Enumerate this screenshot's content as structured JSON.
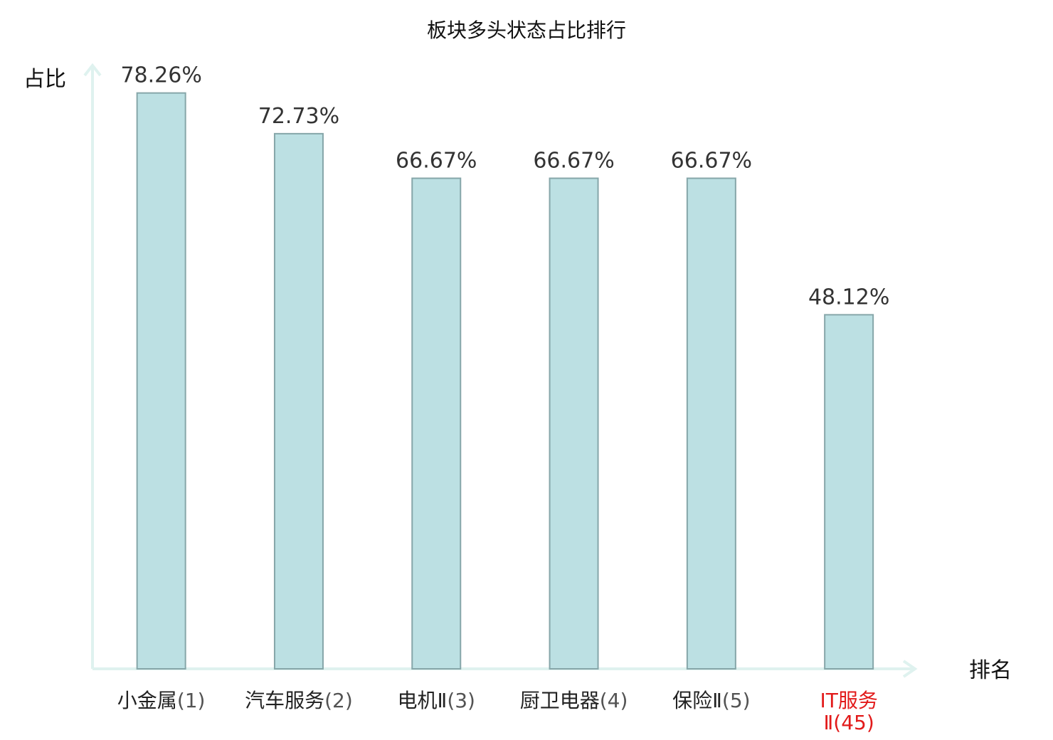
{
  "chart_data": {
    "type": "bar",
    "title": "板块多头状态占比排行",
    "ylabel": "占比",
    "xlabel": "排名",
    "ylim": [
      0,
      82
    ],
    "grid": false,
    "categories": [
      {
        "name": "小金属",
        "rank": "(1)",
        "highlight": false
      },
      {
        "name": "汽车服务",
        "rank": "(2)",
        "highlight": false
      },
      {
        "name": "电机Ⅱ",
        "rank": "(3)",
        "highlight": false
      },
      {
        "name": "厨卫电器",
        "rank": "(4)",
        "highlight": false
      },
      {
        "name": "保险Ⅱ",
        "rank": "(5)",
        "highlight": false
      },
      {
        "name": "IT服务",
        "rank": "Ⅱ(45)",
        "highlight": true
      }
    ],
    "values": [
      78.26,
      72.73,
      66.67,
      66.67,
      66.67,
      48.12
    ],
    "value_labels": [
      "78.26%",
      "72.73%",
      "66.67%",
      "66.67%",
      "66.67%",
      "48.12%"
    ]
  },
  "colors": {
    "bar_fill": "#bce0e3",
    "bar_stroke": "#86a6a9",
    "axis": "#dff2ef",
    "label_normal": "#222222",
    "label_highlight": "#e21a1a",
    "value_text": "#333333"
  }
}
